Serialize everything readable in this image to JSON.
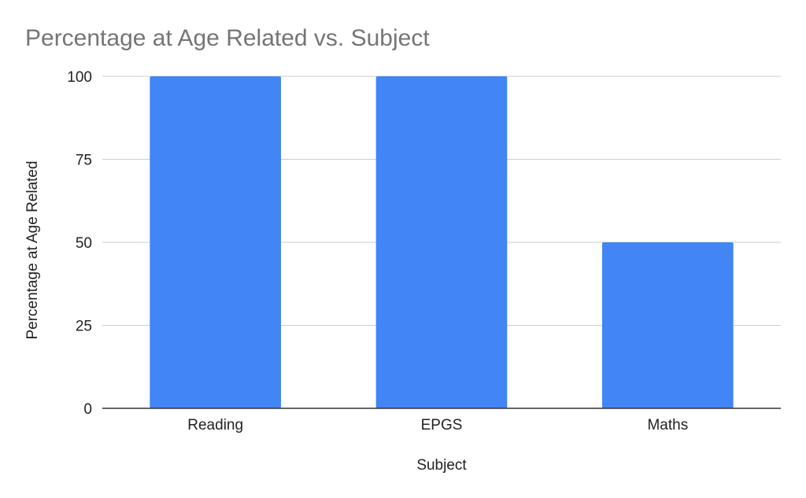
{
  "chart_data": {
    "type": "bar",
    "title": "Percentage at Age Related vs. Subject",
    "xlabel": "Subject",
    "ylabel": "Percentage at Age Related",
    "categories": [
      "Reading",
      "EPGS",
      "Maths"
    ],
    "values": [
      100,
      100,
      50
    ],
    "ylim": [
      0,
      100
    ],
    "yticks": [
      0,
      25,
      50,
      75,
      100
    ],
    "grid": true,
    "legend": "none",
    "colors": {
      "bar": "#4285f4",
      "title": "#757575",
      "grid": "#cccccc",
      "axis": "#333333",
      "text": "#222222"
    }
  }
}
